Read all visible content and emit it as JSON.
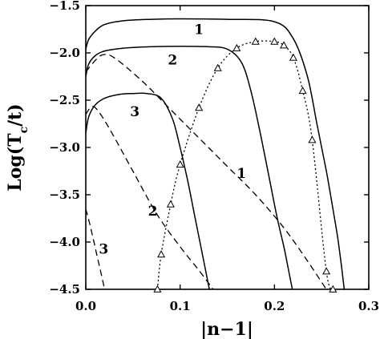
{
  "chart_data": {
    "type": "line",
    "xlabel": "|n−1|",
    "ylabel": "Log(T",
    "ylabel_sub": "c",
    "ylabel_tail": "/t)",
    "xlim": [
      0.0,
      0.3
    ],
    "ylim": [
      -4.5,
      -1.5
    ],
    "x_ticks": [
      0.0,
      0.1,
      0.2,
      0.3
    ],
    "x_tick_labels": [
      "0.0",
      "0.1",
      "0.2",
      "0.3"
    ],
    "y_ticks": [
      -1.5,
      -2.0,
      -2.5,
      -3.0,
      -3.5,
      -4.0,
      -4.5
    ],
    "y_tick_labels": [
      "−1.5",
      "−2.0",
      "−2.5",
      "−3.0",
      "−3.5",
      "−4.0",
      "−4.5"
    ],
    "grid": false,
    "series": [
      {
        "label": "1",
        "style": "solid",
        "x": [
          0.0,
          0.003,
          0.01,
          0.02,
          0.04,
          0.07,
          0.1,
          0.15,
          0.2,
          0.22,
          0.235,
          0.245,
          0.255,
          0.262,
          0.267,
          0.271,
          0.274
        ],
        "y": [
          -1.96,
          -1.86,
          -1.77,
          -1.7,
          -1.66,
          -1.645,
          -1.64,
          -1.645,
          -1.67,
          -1.85,
          -2.25,
          -2.75,
          -3.25,
          -3.65,
          -3.95,
          -4.25,
          -4.5
        ]
      },
      {
        "label": "2",
        "style": "solid",
        "x": [
          0.0,
          0.003,
          0.01,
          0.02,
          0.04,
          0.07,
          0.1,
          0.13,
          0.15,
          0.165,
          0.175,
          0.185,
          0.195,
          0.203,
          0.21,
          0.215,
          0.219
        ],
        "y": [
          -2.25,
          -2.12,
          -2.03,
          -1.98,
          -1.95,
          -1.935,
          -1.93,
          -1.935,
          -1.96,
          -2.1,
          -2.4,
          -2.85,
          -3.35,
          -3.75,
          -4.05,
          -4.3,
          -4.5
        ]
      },
      {
        "label": "3",
        "style": "solid",
        "x": [
          0.0,
          0.003,
          0.01,
          0.02,
          0.035,
          0.05,
          0.065,
          0.08,
          0.092,
          0.1,
          0.108,
          0.115,
          0.121,
          0.126,
          0.131
        ],
        "y": [
          -2.85,
          -2.68,
          -2.55,
          -2.48,
          -2.44,
          -2.43,
          -2.43,
          -2.48,
          -2.7,
          -3.0,
          -3.35,
          -3.7,
          -4.0,
          -4.25,
          -4.5
        ]
      },
      {
        "label": "1",
        "style": "dashed",
        "x": [
          0.0,
          0.01,
          0.018,
          0.03,
          0.06,
          0.09,
          0.12,
          0.15,
          0.18,
          0.21,
          0.235,
          0.255
        ],
        "y": [
          -2.2,
          -2.08,
          -2.02,
          -2.05,
          -2.3,
          -2.6,
          -2.9,
          -3.2,
          -3.5,
          -3.85,
          -4.2,
          -4.5
        ]
      },
      {
        "label": "2",
        "style": "dashed",
        "x": [
          0.0,
          0.006,
          0.012,
          0.025,
          0.05,
          0.075,
          0.1,
          0.12,
          0.135
        ],
        "y": [
          -2.65,
          -2.57,
          -2.6,
          -2.8,
          -3.25,
          -3.7,
          -4.05,
          -4.3,
          -4.5
        ]
      },
      {
        "label": "3",
        "style": "dashed",
        "x": [
          0.0,
          0.004,
          0.008,
          0.012,
          0.016,
          0.02
        ],
        "y": [
          -3.65,
          -3.8,
          -3.97,
          -4.15,
          -4.32,
          -4.5
        ]
      },
      {
        "label": "",
        "style": "dotted",
        "marker": "triangle",
        "x": [
          0.076,
          0.08,
          0.09,
          0.1,
          0.12,
          0.14,
          0.16,
          0.18,
          0.2,
          0.21,
          0.22,
          0.23,
          0.24,
          0.255,
          0.262
        ],
        "y": [
          -4.5,
          -4.13,
          -3.6,
          -3.18,
          -2.58,
          -2.16,
          -1.95,
          -1.88,
          -1.88,
          -1.92,
          -2.05,
          -2.4,
          -2.92,
          -4.31,
          -4.5
        ]
      }
    ]
  }
}
